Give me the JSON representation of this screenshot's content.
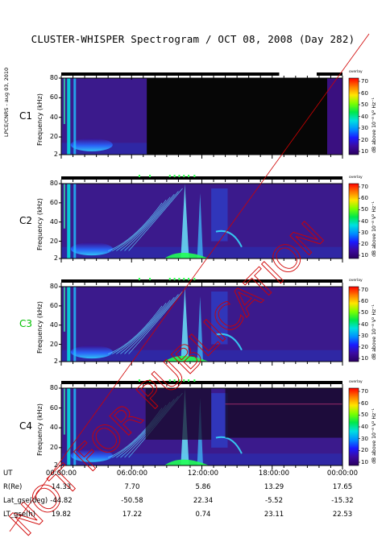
{
  "title": "CLUSTER-WHISPER Spectrogram / OCT 08, 2008 (Day 282)",
  "side_credit": "LPCE/CNRS - aug 03, 2010",
  "watermark": "NOT FOR PUBLICATION",
  "colorbar": {
    "top_label": "overlay",
    "unit_label": "dB above 10⁻⁸ V² Hz⁻¹",
    "ticks": [
      "70",
      "60",
      "50",
      "40",
      "30",
      "20",
      "10"
    ],
    "stops": [
      "#ff0000",
      "#ff7a00",
      "#ffe600",
      "#7cff00",
      "#00e84a",
      "#00e0e0",
      "#0090ff",
      "#1a1aff",
      "#3c0aa0",
      "#2a0060"
    ]
  },
  "chart_data": {
    "type": "heatmap",
    "title": "CLUSTER-WHISPER Spectrogram / OCT 08, 2008 (Day 282)",
    "ylabel": "Frequency (kHz)",
    "ylim": [
      2,
      80
    ],
    "y_ticks": [
      "80",
      "60",
      "40",
      "20",
      "2"
    ],
    "x_ticks": [
      "00:00:00",
      "06:00:00",
      "12:00:00",
      "18:00:00",
      "00:00:00"
    ],
    "x_label": "UT",
    "panels": [
      {
        "name": "C1",
        "color": "#000000"
      },
      {
        "name": "C2",
        "color": "#000000"
      },
      {
        "name": "C3",
        "color": "#00c000"
      },
      {
        "name": "C4",
        "color": "#000000"
      }
    ],
    "orbit": [
      {
        "label": "R(Re)",
        "values": [
          "14.33",
          "7.70",
          "5.86",
          "13.29",
          "17.65"
        ]
      },
      {
        "label": "Lat_gse(deg)",
        "values": [
          "-44.82",
          "-50.58",
          "22.34",
          "-5.52",
          "-15.32"
        ]
      },
      {
        "label": "LT_gse(h)",
        "values": [
          "19.82",
          "17.22",
          "0.74",
          "23.11",
          "22.53"
        ]
      }
    ]
  }
}
